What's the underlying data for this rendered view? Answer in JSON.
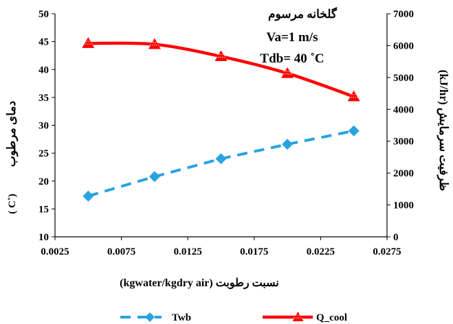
{
  "chart_data": {
    "type": "line",
    "title": "گلخانه مرسوم",
    "annotations": [
      "Va=1 m/s",
      "Tdb= 40 ˚C"
    ],
    "xlabel": "نسبت رطوبت (kgwater/kgdry air)",
    "ylabel_left_main": "دمای مرطوب",
    "ylabel_left_unit": "( C˚)",
    "ylabel_right": "ظرفیت سرمایش (kJ/hr)",
    "xlim": [
      0.0025,
      0.0275
    ],
    "x_ticks": [
      0.0025,
      0.0075,
      0.0125,
      0.0175,
      0.0225,
      0.0275
    ],
    "x_tick_labels": [
      "0.0025",
      "0.0075",
      "0.0125",
      "0.0175",
      "0.0225",
      "0.0275"
    ],
    "ylim_left": [
      10,
      50
    ],
    "y_left_ticks": [
      10,
      15,
      20,
      25,
      30,
      35,
      40,
      45,
      50
    ],
    "ylim_right": [
      0,
      7000
    ],
    "y_right_ticks": [
      0,
      1000,
      2000,
      3000,
      4000,
      5000,
      6000,
      7000
    ],
    "grid": false,
    "legend_position": "bottom",
    "x": [
      0.005,
      0.01,
      0.015,
      0.02,
      0.025
    ],
    "series": [
      {
        "name": "Twb",
        "axis": "left",
        "values": [
          17.3,
          20.8,
          24.0,
          26.6,
          29.0
        ],
        "color": "#29a3e0",
        "marker": "diamond",
        "dash": true
      },
      {
        "name": "Q_cool",
        "axis": "right",
        "values": [
          6070,
          6040,
          5660,
          5130,
          4400
        ],
        "color": "#ff0000",
        "marker": "triangle",
        "dash": false
      }
    ]
  }
}
